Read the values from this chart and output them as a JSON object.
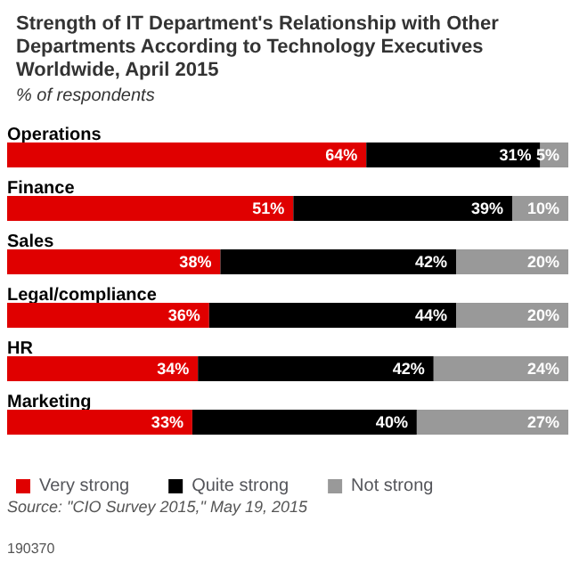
{
  "chart_data": {
    "type": "bar",
    "orientation": "horizontal",
    "stacked": true,
    "title": "Strength of IT Department's Relationship with Other Departments According to Technology Executives Worldwide, April 2015",
    "subtitle": "% of respondents",
    "categories": [
      "Operations",
      "Finance",
      "Sales",
      "Legal/compliance",
      "HR",
      "Marketing"
    ],
    "series": [
      {
        "name": "Very strong",
        "color": "#e00000",
        "values": [
          64,
          51,
          38,
          36,
          34,
          33
        ],
        "value_labels": [
          "64%",
          "51%",
          "38%",
          "36%",
          "34%",
          "33%"
        ]
      },
      {
        "name": "Quite strong",
        "color": "#000000",
        "values": [
          31,
          39,
          42,
          44,
          42,
          40
        ],
        "value_labels": [
          "31%",
          "39%",
          "42%",
          "44%",
          "42%",
          "40%"
        ]
      },
      {
        "name": "Not strong",
        "color": "#999999",
        "values": [
          5,
          10,
          20,
          20,
          24,
          27
        ],
        "value_labels": [
          "5%",
          "10%",
          "20%",
          "20%",
          "24%",
          "27%"
        ]
      }
    ],
    "xlim": [
      0,
      100
    ],
    "tick_labels": "y",
    "legend": "bottom left",
    "annotations": [
      "Source: \"CIO Survey 2015,\" May 19, 2015",
      "190370"
    ]
  }
}
